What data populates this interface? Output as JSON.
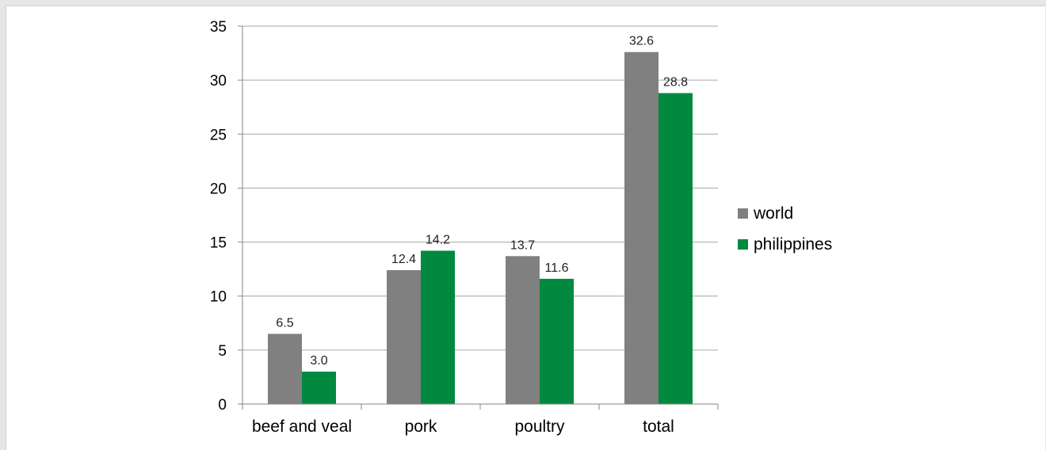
{
  "chart_data": {
    "type": "bar",
    "categories": [
      "beef and veal",
      "pork",
      "poultry",
      "total"
    ],
    "series": [
      {
        "name": "world",
        "values": [
          6.5,
          12.4,
          13.7,
          32.6
        ],
        "labels": [
          "6.5",
          "12.4",
          "13.7",
          "32.6"
        ],
        "color": "#808080"
      },
      {
        "name": "philippines",
        "values": [
          3.0,
          14.2,
          11.6,
          28.8
        ],
        "labels": [
          "3.0",
          "14.2",
          "11.6",
          "28.8"
        ],
        "color": "#00893f"
      }
    ],
    "ylim": [
      0,
      35
    ],
    "yticks": [
      0,
      5,
      10,
      15,
      20,
      25,
      30,
      35
    ],
    "grid": true,
    "legend": "right"
  }
}
